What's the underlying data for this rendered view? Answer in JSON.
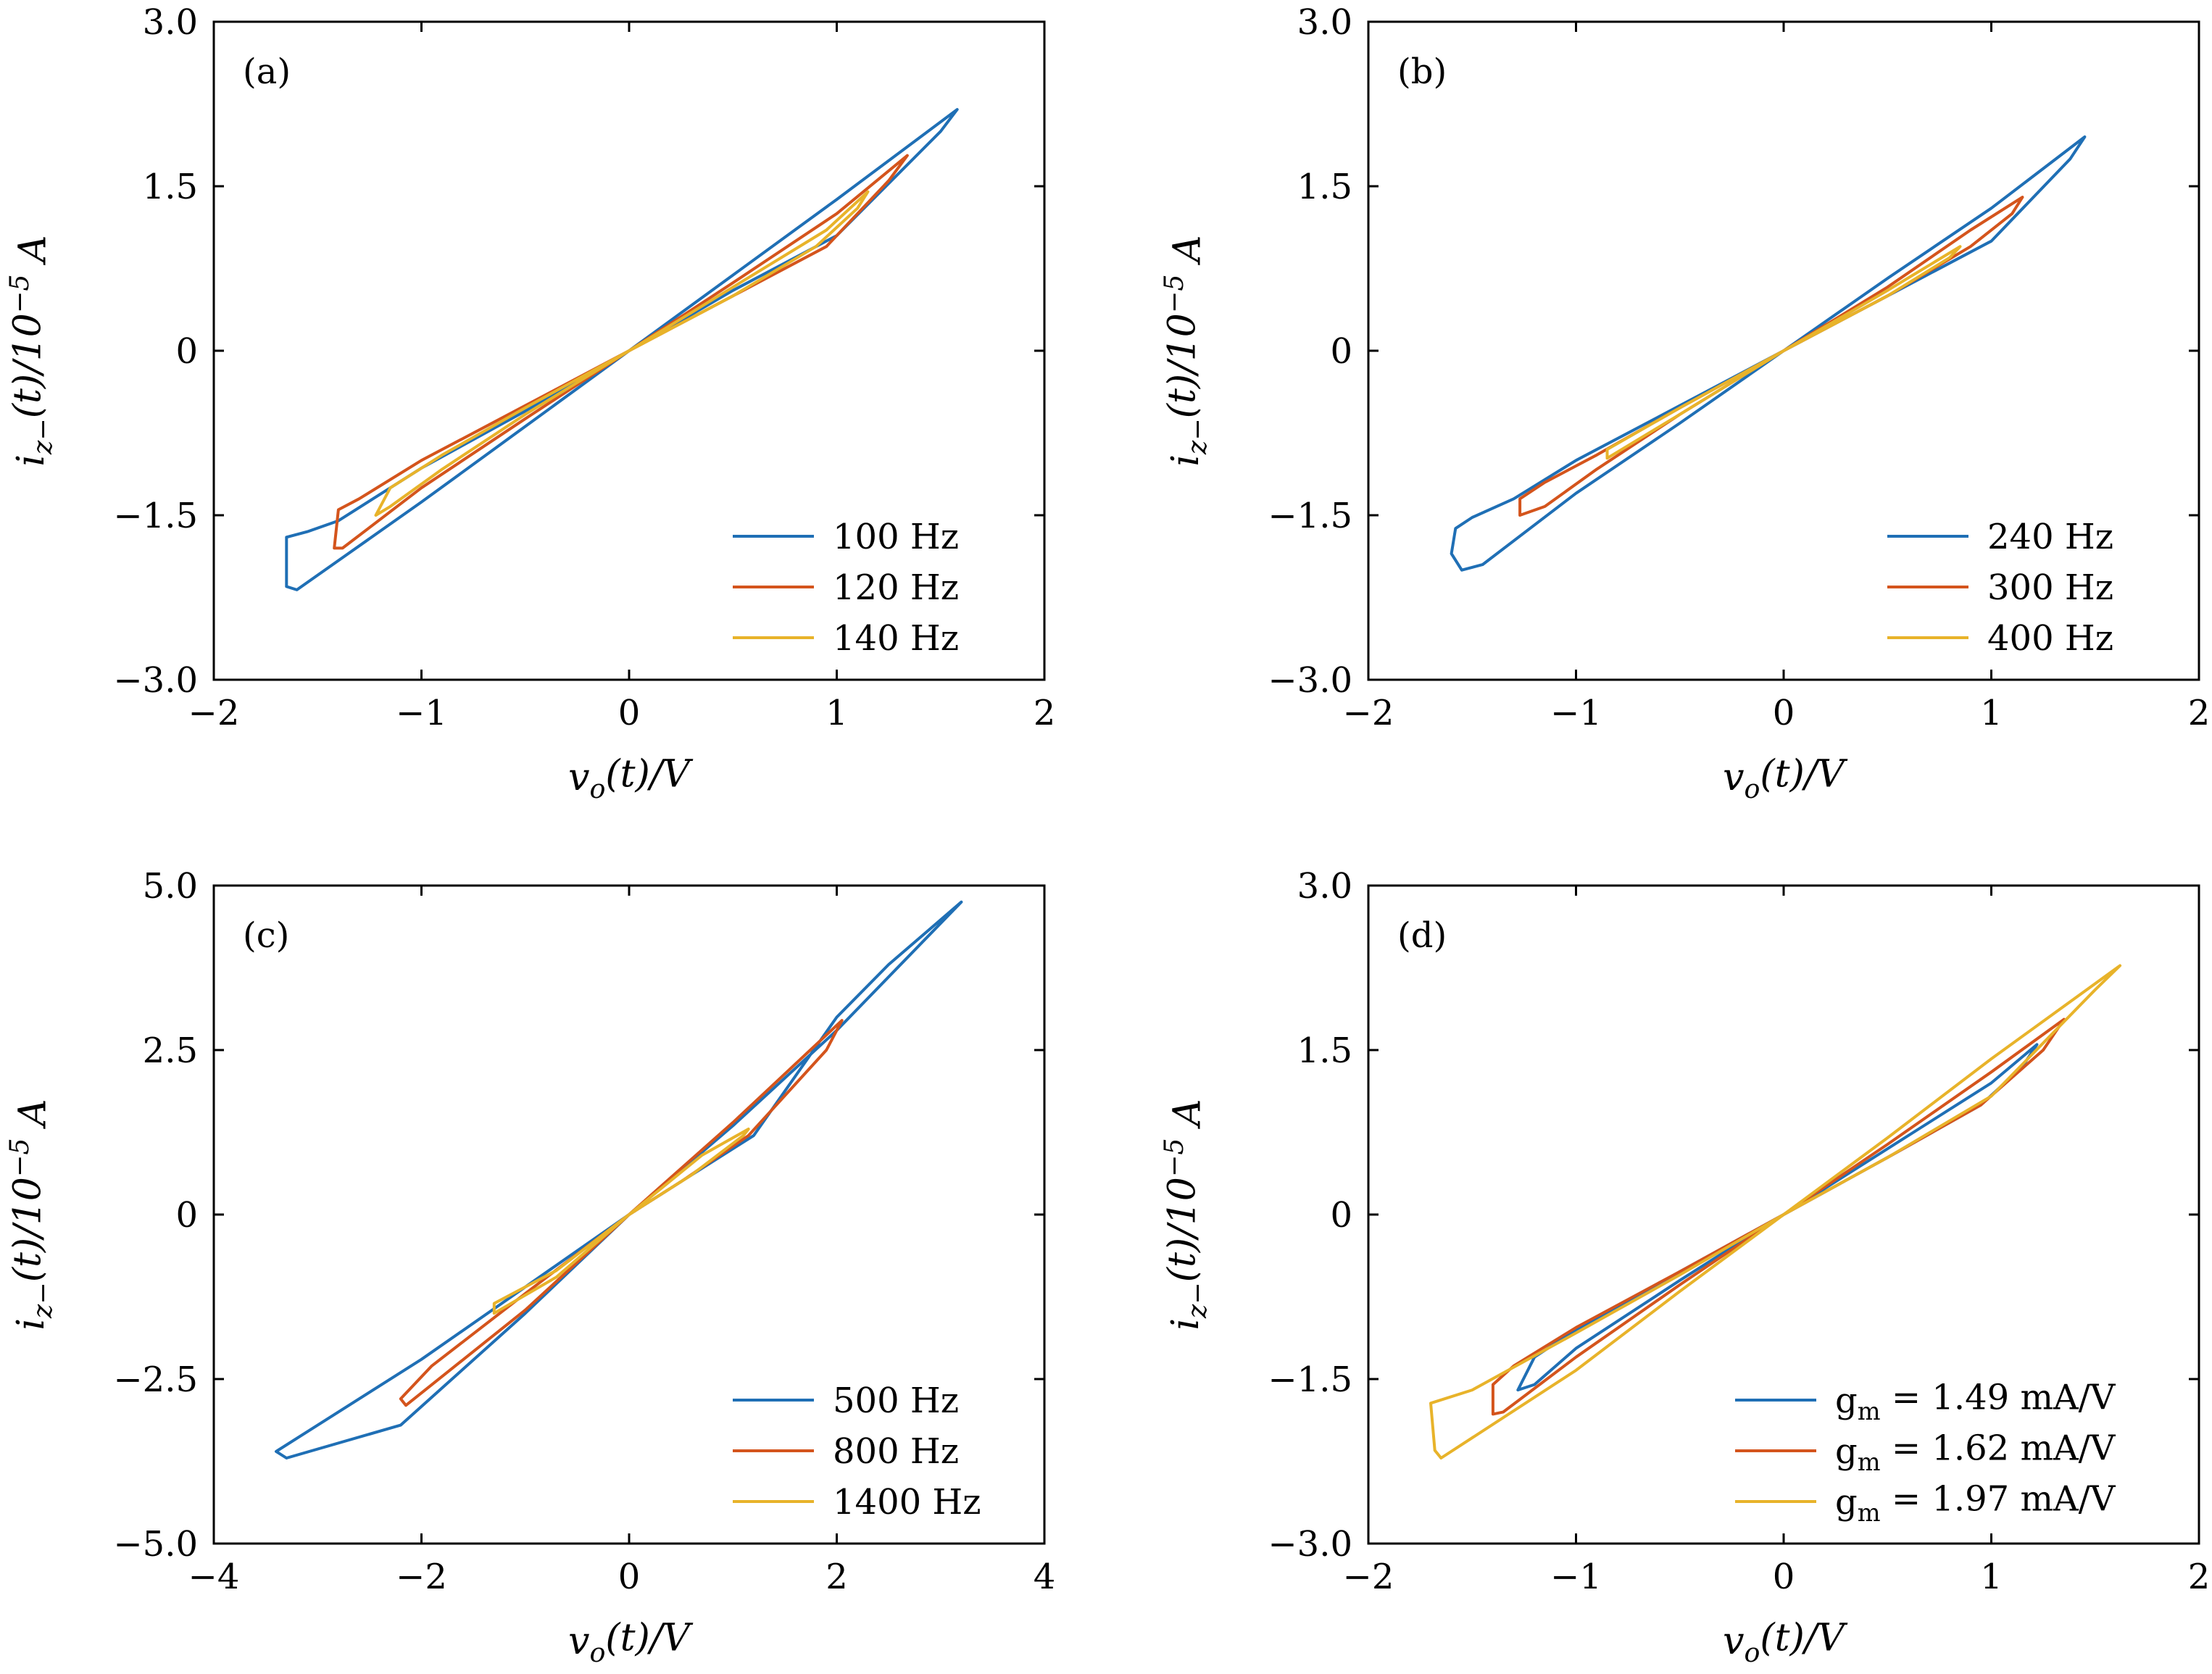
{
  "colors": {
    "blue": "#1f6fb5",
    "red": "#d4541c",
    "yellow": "#e8b32a"
  },
  "chart_data": [
    {
      "panel": "(a)",
      "type": "line",
      "xlabel": "v_o(t)/V",
      "ylabel": "i_z−(t)/10^−5 A",
      "xlim": [
        -2,
        2
      ],
      "ylim": [
        -3.0,
        3.0
      ],
      "xticks": [
        -2,
        -1,
        0,
        1,
        2
      ],
      "xtick_labels": [
        "−2",
        "−1",
        "0",
        "1",
        "2"
      ],
      "yticks": [
        -3.0,
        -1.5,
        0,
        1.5,
        3.0
      ],
      "ytick_labels": [
        "−3.0",
        "−1.5",
        "0",
        "1.5",
        "3.0"
      ],
      "legend_position": "lower-right",
      "grid": false,
      "series": [
        {
          "name": "100 Hz",
          "color": "#1f6fb5",
          "points": [
            [
              0,
              0
            ],
            [
              0.5,
              0.69
            ],
            [
              1.0,
              1.38
            ],
            [
              1.58,
              2.2
            ],
            [
              1.5,
              2.0
            ],
            [
              1.0,
              1.05
            ],
            [
              0.5,
              0.55
            ],
            [
              0,
              0
            ],
            [
              -0.5,
              -0.55
            ],
            [
              -1.0,
              -1.07
            ],
            [
              -1.4,
              -1.55
            ],
            [
              -1.55,
              -1.65
            ],
            [
              -1.65,
              -1.7
            ],
            [
              -1.65,
              -2.15
            ],
            [
              -1.6,
              -2.18
            ],
            [
              -1.0,
              -1.38
            ],
            [
              -0.5,
              -0.69
            ],
            [
              0,
              0
            ]
          ]
        },
        {
          "name": "120 Hz",
          "color": "#d4541c",
          "points": [
            [
              0,
              0
            ],
            [
              0.5,
              0.62
            ],
            [
              1.0,
              1.25
            ],
            [
              1.34,
              1.78
            ],
            [
              1.25,
              1.55
            ],
            [
              0.95,
              0.95
            ],
            [
              0.5,
              0.5
            ],
            [
              0,
              0
            ],
            [
              -0.5,
              -0.5
            ],
            [
              -1.0,
              -1.0
            ],
            [
              -1.3,
              -1.35
            ],
            [
              -1.4,
              -1.45
            ],
            [
              -1.42,
              -1.8
            ],
            [
              -1.38,
              -1.8
            ],
            [
              -1.0,
              -1.25
            ],
            [
              -0.5,
              -0.62
            ],
            [
              0,
              0
            ]
          ]
        },
        {
          "name": "140 Hz",
          "color": "#e8b32a",
          "points": [
            [
              0,
              0
            ],
            [
              0.5,
              0.58
            ],
            [
              0.95,
              1.1
            ],
            [
              1.15,
              1.45
            ],
            [
              1.1,
              1.3
            ],
            [
              0.9,
              0.95
            ],
            [
              0.5,
              0.5
            ],
            [
              0,
              0
            ],
            [
              -0.5,
              -0.52
            ],
            [
              -0.9,
              -0.95
            ],
            [
              -1.15,
              -1.25
            ],
            [
              -1.22,
              -1.5
            ],
            [
              -1.15,
              -1.42
            ],
            [
              -0.9,
              -1.08
            ],
            [
              -0.5,
              -0.58
            ],
            [
              0,
              0
            ]
          ]
        }
      ]
    },
    {
      "panel": "(b)",
      "type": "line",
      "xlabel": "v_o(t)/V",
      "ylabel": "i_z−(t)/10^−5 A",
      "xlim": [
        -2,
        2
      ],
      "ylim": [
        -3.0,
        3.0
      ],
      "xticks": [
        -2,
        -1,
        0,
        1,
        2
      ],
      "xtick_labels": [
        "−2",
        "−1",
        "0",
        "1",
        "2"
      ],
      "yticks": [
        -3.0,
        -1.5,
        0,
        1.5,
        3.0
      ],
      "ytick_labels": [
        "−3.0",
        "−1.5",
        "0",
        "1.5",
        "3.0"
      ],
      "legend_position": "lower-right",
      "grid": false,
      "series": [
        {
          "name": "240 Hz",
          "color": "#1f6fb5",
          "points": [
            [
              0,
              0
            ],
            [
              0.5,
              0.66
            ],
            [
              1.0,
              1.3
            ],
            [
              1.45,
              1.95
            ],
            [
              1.38,
              1.75
            ],
            [
              1.0,
              1.0
            ],
            [
              0.5,
              0.5
            ],
            [
              0,
              0
            ],
            [
              -0.5,
              -0.5
            ],
            [
              -1.0,
              -1.0
            ],
            [
              -1.3,
              -1.35
            ],
            [
              -1.5,
              -1.52
            ],
            [
              -1.58,
              -1.62
            ],
            [
              -1.6,
              -1.85
            ],
            [
              -1.55,
              -2.0
            ],
            [
              -1.45,
              -1.95
            ],
            [
              -1.0,
              -1.3
            ],
            [
              -0.5,
              -0.66
            ],
            [
              0,
              0
            ]
          ]
        },
        {
          "name": "300 Hz",
          "color": "#d4541c",
          "points": [
            [
              0,
              0
            ],
            [
              0.5,
              0.58
            ],
            [
              0.9,
              1.1
            ],
            [
              1.15,
              1.4
            ],
            [
              1.1,
              1.25
            ],
            [
              0.9,
              0.95
            ],
            [
              0.5,
              0.5
            ],
            [
              0,
              0
            ],
            [
              -0.5,
              -0.52
            ],
            [
              -0.9,
              -0.95
            ],
            [
              -1.15,
              -1.2
            ],
            [
              -1.27,
              -1.35
            ],
            [
              -1.27,
              -1.5
            ],
            [
              -1.15,
              -1.42
            ],
            [
              -0.9,
              -1.08
            ],
            [
              -0.5,
              -0.58
            ],
            [
              0,
              0
            ]
          ]
        },
        {
          "name": "400 Hz",
          "color": "#e8b32a",
          "points": [
            [
              0,
              0
            ],
            [
              0.5,
              0.55
            ],
            [
              0.85,
              0.95
            ],
            [
              0.8,
              0.85
            ],
            [
              0.5,
              0.5
            ],
            [
              0,
              0
            ],
            [
              -0.5,
              -0.52
            ],
            [
              -0.85,
              -0.9
            ],
            [
              -0.85,
              -0.98
            ],
            [
              -0.5,
              -0.58
            ],
            [
              0,
              0
            ]
          ]
        }
      ]
    },
    {
      "panel": "(c)",
      "type": "line",
      "xlabel": "v_o(t)/V",
      "ylabel": "i_z−(t)/10^−5 A",
      "xlim": [
        -4,
        4
      ],
      "ylim": [
        -5.0,
        5.0
      ],
      "xticks": [
        -4,
        -2,
        0,
        2,
        4
      ],
      "xtick_labels": [
        "−4",
        "−2",
        "0",
        "2",
        "4"
      ],
      "yticks": [
        -5.0,
        -2.5,
        0,
        2.5,
        5.0
      ],
      "ytick_labels": [
        "−5.0",
        "−2.5",
        "0",
        "2.5",
        "5.0"
      ],
      "legend_position": "lower-right",
      "grid": false,
      "series": [
        {
          "name": "500 Hz",
          "color": "#1f6fb5",
          "points": [
            [
              0,
              0
            ],
            [
              1.0,
              1.35
            ],
            [
              2.0,
              2.8
            ],
            [
              3.2,
              4.75
            ],
            [
              2.5,
              3.8
            ],
            [
              2.0,
              3.0
            ],
            [
              1.2,
              1.2
            ],
            [
              0.5,
              0.5
            ],
            [
              0,
              0
            ],
            [
              -1.0,
              -1.1
            ],
            [
              -2.0,
              -2.2
            ],
            [
              -3.0,
              -3.2
            ],
            [
              -3.4,
              -3.6
            ],
            [
              -3.3,
              -3.7
            ],
            [
              -2.2,
              -3.2
            ],
            [
              -1.0,
              -1.5
            ],
            [
              0,
              0
            ]
          ]
        },
        {
          "name": "800 Hz",
          "color": "#d4541c",
          "points": [
            [
              0,
              0
            ],
            [
              1.0,
              1.4
            ],
            [
              2.05,
              2.95
            ],
            [
              1.9,
              2.5
            ],
            [
              1.15,
              1.2
            ],
            [
              0.5,
              0.5
            ],
            [
              0,
              0
            ],
            [
              -1.0,
              -1.2
            ],
            [
              -1.9,
              -2.3
            ],
            [
              -2.2,
              -2.8
            ],
            [
              -2.15,
              -2.9
            ],
            [
              -1.0,
              -1.45
            ],
            [
              0,
              0
            ]
          ]
        },
        {
          "name": "1400 Hz",
          "color": "#e8b32a",
          "points": [
            [
              0,
              0
            ],
            [
              0.7,
              0.9
            ],
            [
              1.15,
              1.3
            ],
            [
              1.1,
              1.2
            ],
            [
              0.6,
              0.6
            ],
            [
              0,
              0
            ],
            [
              -0.7,
              -0.85
            ],
            [
              -1.3,
              -1.35
            ],
            [
              -1.3,
              -1.5
            ],
            [
              -0.7,
              -0.95
            ],
            [
              0,
              0
            ]
          ]
        }
      ]
    },
    {
      "panel": "(d)",
      "type": "line",
      "xlabel": "v_o(t)/V",
      "ylabel": "i_z−(t)/10^−5 A",
      "xlim": [
        -2,
        2
      ],
      "ylim": [
        -3.0,
        3.0
      ],
      "xticks": [
        -2,
        -1,
        0,
        1,
        2
      ],
      "xtick_labels": [
        "−2",
        "−1",
        "0",
        "1",
        "2"
      ],
      "yticks": [
        -3.0,
        -1.5,
        0,
        1.5,
        3.0
      ],
      "ytick_labels": [
        "−3.0",
        "−1.5",
        "0",
        "1.5",
        "3.0"
      ],
      "legend_position": "lower-right",
      "grid": false,
      "series": [
        {
          "name": "g_m = 1.49 mA/V",
          "color": "#1f6fb5",
          "points": [
            [
              0,
              0
            ],
            [
              0.5,
              0.6
            ],
            [
              1.0,
              1.2
            ],
            [
              1.22,
              1.55
            ],
            [
              1.15,
              1.35
            ],
            [
              0.95,
              1.0
            ],
            [
              0.5,
              0.52
            ],
            [
              0,
              0
            ],
            [
              -0.5,
              -0.52
            ],
            [
              -1.0,
              -1.05
            ],
            [
              -1.2,
              -1.3
            ],
            [
              -1.28,
              -1.6
            ],
            [
              -1.2,
              -1.55
            ],
            [
              -1.0,
              -1.22
            ],
            [
              -0.5,
              -0.6
            ],
            [
              0,
              0
            ]
          ]
        },
        {
          "name": "g_m = 1.62 mA/V",
          "color": "#d4541c",
          "points": [
            [
              0,
              0
            ],
            [
              0.5,
              0.64
            ],
            [
              1.0,
              1.3
            ],
            [
              1.35,
              1.78
            ],
            [
              1.25,
              1.5
            ],
            [
              0.95,
              1.0
            ],
            [
              0.5,
              0.52
            ],
            [
              0,
              0
            ],
            [
              -0.5,
              -0.52
            ],
            [
              -1.0,
              -1.03
            ],
            [
              -1.3,
              -1.38
            ],
            [
              -1.4,
              -1.55
            ],
            [
              -1.4,
              -1.82
            ],
            [
              -1.35,
              -1.8
            ],
            [
              -1.0,
              -1.3
            ],
            [
              -0.5,
              -0.64
            ],
            [
              0,
              0
            ]
          ]
        },
        {
          "name": "g_m = 1.97 mA/V",
          "color": "#e8b32a",
          "points": [
            [
              0,
              0
            ],
            [
              0.5,
              0.7
            ],
            [
              1.0,
              1.42
            ],
            [
              1.62,
              2.27
            ],
            [
              1.5,
              2.05
            ],
            [
              1.0,
              1.08
            ],
            [
              0.5,
              0.52
            ],
            [
              0,
              0
            ],
            [
              -0.5,
              -0.55
            ],
            [
              -1.0,
              -1.08
            ],
            [
              -1.5,
              -1.6
            ],
            [
              -1.7,
              -1.72
            ],
            [
              -1.68,
              -2.15
            ],
            [
              -1.65,
              -2.22
            ],
            [
              -1.0,
              -1.42
            ],
            [
              -0.5,
              -0.7
            ],
            [
              0,
              0
            ]
          ]
        }
      ]
    }
  ]
}
